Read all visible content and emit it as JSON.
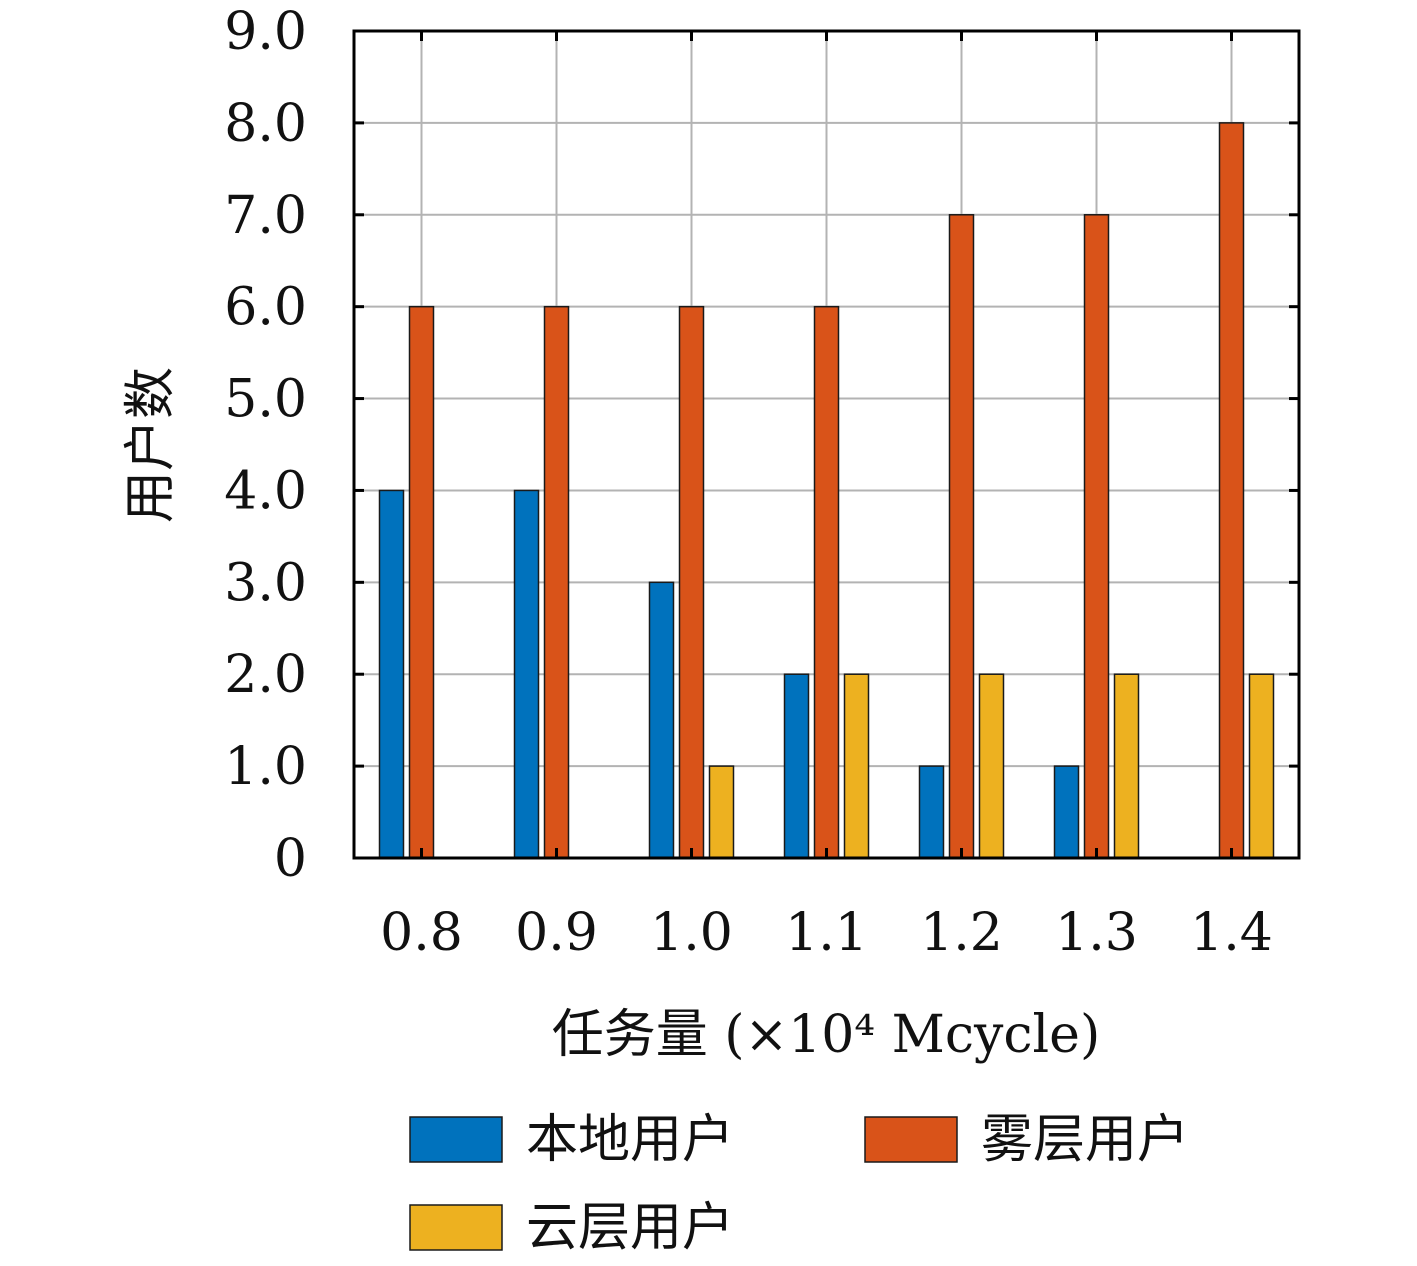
{
  "chart_data": {
    "type": "bar",
    "categories": [
      "0.8",
      "0.9",
      "1.0",
      "1.1",
      "1.2",
      "1.3",
      "1.4"
    ],
    "series": [
      {
        "name": "本地用户",
        "color": "#0072BD",
        "values": [
          4,
          4,
          3,
          2,
          1,
          1,
          0
        ]
      },
      {
        "name": "雾层用户",
        "color": "#D95319",
        "values": [
          6,
          6,
          6,
          6,
          7,
          7,
          8
        ]
      },
      {
        "name": "云层用户",
        "color": "#EDB120",
        "values": [
          0,
          0,
          1,
          2,
          2,
          2,
          2
        ]
      }
    ],
    "xlabel": "任务量 (×10⁴ Mcycle)",
    "ylabel": "用户数",
    "ylim": [
      0,
      9
    ],
    "yticks": [
      "0",
      "1.0",
      "2.0",
      "3.0",
      "4.0",
      "5.0",
      "6.0",
      "7.0",
      "8.0",
      "9.0"
    ],
    "grid": true,
    "legend_position": "bottom"
  }
}
